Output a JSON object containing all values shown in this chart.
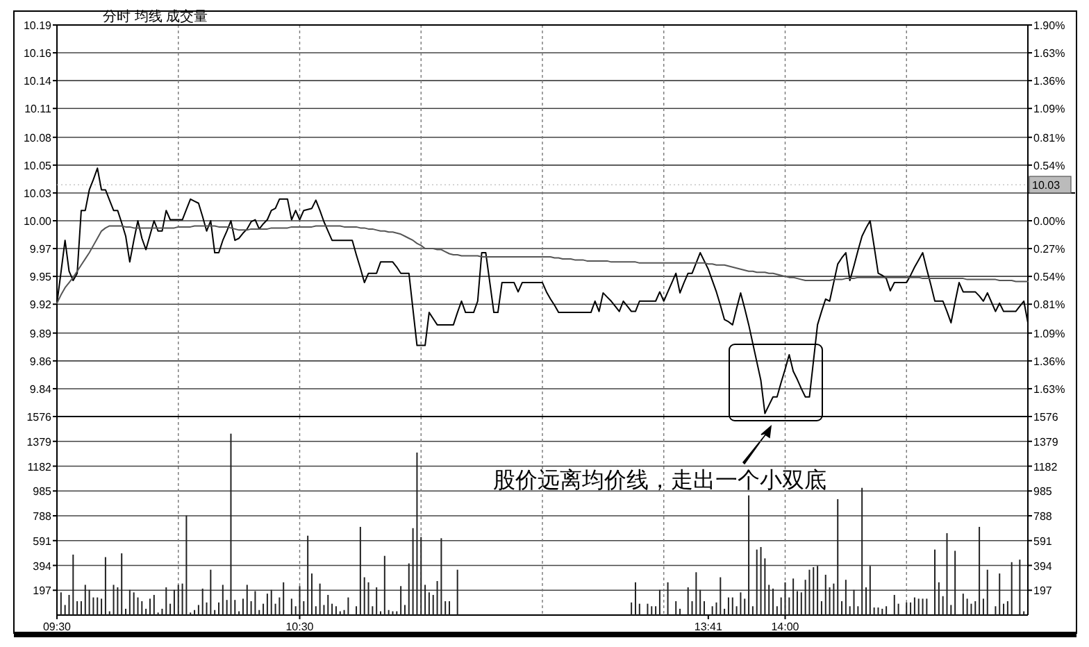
{
  "chart_data": [
    {
      "type": "line",
      "title": "分时 均线 成交量",
      "tick_labels": "y",
      "grid": true,
      "categories": [
        null,
        null,
        null,
        null,
        null,
        null,
        null,
        null,
        null,
        null,
        null,
        null,
        null,
        null,
        null,
        null,
        null,
        null,
        null,
        null,
        null,
        null,
        null,
        null,
        null,
        null,
        null,
        null,
        null,
        null,
        null,
        null,
        null,
        null,
        null,
        null,
        null,
        null,
        null,
        null,
        null,
        null,
        null,
        null,
        null,
        null,
        null,
        null,
        null,
        null,
        null,
        null,
        null,
        null,
        null,
        null,
        null,
        null,
        null,
        null,
        null,
        null,
        null,
        null,
        null,
        null,
        null,
        null,
        null,
        null,
        null,
        null,
        null,
        null,
        null,
        null,
        null,
        null,
        null,
        null,
        null,
        null,
        null,
        null,
        null,
        null,
        null,
        null,
        null,
        null,
        null,
        null,
        null,
        null,
        null,
        null,
        null,
        null,
        null,
        null,
        null,
        null,
        null,
        null,
        null,
        null,
        null,
        null,
        null,
        null,
        null,
        null,
        null,
        null,
        null,
        null,
        null,
        null,
        null,
        null,
        null,
        null,
        null,
        null,
        null,
        null,
        null,
        null,
        null,
        null,
        null,
        null,
        null,
        null,
        null,
        null,
        null,
        null,
        null,
        null,
        null,
        null,
        null,
        null,
        null,
        null,
        null,
        null,
        null,
        null,
        null,
        null,
        null,
        null,
        null,
        null,
        null,
        null,
        null,
        null,
        null,
        null,
        null,
        null,
        null,
        null,
        null,
        null,
        null,
        null,
        null,
        null,
        null,
        null,
        null,
        null,
        null,
        null,
        null,
        null,
        null,
        null,
        null,
        null,
        null,
        null,
        null,
        null,
        null,
        null,
        null,
        null,
        null,
        null,
        null,
        null,
        null,
        null,
        null,
        null,
        null,
        null,
        null,
        null,
        null,
        null,
        null,
        null,
        null,
        null,
        null,
        null,
        null,
        null,
        null,
        null,
        null,
        null,
        null,
        null,
        null,
        null,
        null,
        null,
        null,
        null,
        null,
        null,
        null,
        null,
        null,
        null,
        null,
        null,
        null,
        null,
        null,
        null,
        null,
        null,
        null
      ],
      "ylim": [
        9.81,
        10.19
      ],
      "yticks": [
        {
          "value": 10.19,
          "label": "10.19"
        },
        {
          "value": 10.163,
          "label": "10.16"
        },
        {
          "value": 10.136,
          "label": "10.14"
        },
        {
          "value": 10.109,
          "label": "10.11"
        },
        {
          "value": 10.081,
          "label": "10.08"
        },
        {
          "value": 10.054,
          "label": "10.05"
        },
        {
          "value": 10.027,
          "label": "10.03"
        },
        {
          "value": 10.0,
          "label": "10.00"
        },
        {
          "value": 9.973,
          "label": "9.97"
        },
        {
          "value": 9.946,
          "label": "9.95"
        },
        {
          "value": 9.919,
          "label": "9.92"
        },
        {
          "value": 9.891,
          "label": "9.89"
        },
        {
          "value": 9.864,
          "label": "9.86"
        },
        {
          "value": 9.837,
          "label": "9.84"
        }
      ],
      "y2lim": [
        -1.9,
        1.9
      ],
      "y2ticks": [
        {
          "value": 1.9,
          "label": "1.90%"
        },
        {
          "value": 1.63,
          "label": "1.63%"
        },
        {
          "value": 1.36,
          "label": "1.36%"
        },
        {
          "value": 1.09,
          "label": "1.09%"
        },
        {
          "value": 0.81,
          "label": "0.81%"
        },
        {
          "value": 0.54,
          "label": "0.54%"
        },
        {
          "value": 0,
          "label": "0.00%"
        },
        {
          "value": -0.27,
          "label": "0.27%"
        },
        {
          "value": -0.54,
          "label": "0.54%"
        },
        {
          "value": -0.81,
          "label": "0.81%"
        },
        {
          "value": -1.09,
          "label": "1.09%"
        },
        {
          "value": -1.36,
          "label": "1.36%"
        },
        {
          "value": -1.63,
          "label": "1.63%"
        }
      ],
      "ref_lines": [
        {
          "axis": "y",
          "value": 10.035,
          "label": "10.03",
          "color": "#bbbbbb"
        }
      ],
      "series": [
        {
          "color": "#000000",
          "values": [
            9.92,
            9.95,
            9.981,
            9.951,
            9.942,
            9.949,
            10.01,
            10.01,
            10.03,
            10.04,
            10.051,
            10.03,
            10.03,
            10.02,
            10.01,
            10.01,
            9.998,
            9.985,
            9.96,
            9.981,
            10.0,
            9.983,
            9.972,
            9.986,
            10.0,
            9.99,
            9.99,
            10.01,
            10.001,
            10.001,
            10.001,
            10.001,
            10.011,
            10.021,
            10.019,
            10.017,
            10.004,
            9.99,
            10.0,
            9.969,
            9.969,
            9.981,
            9.99,
            10.0,
            9.981,
            9.983,
            9.988,
            9.992,
            9.999,
            10.001,
            9.992,
            9.997,
            10.001,
            10.01,
            10.012,
            10.021,
            10.021,
            10.021,
            10.001,
            10.01,
            10.001,
            10.01,
            10.011,
            10.012,
            10.02,
            10.01,
            9.999,
            9.99,
            9.981,
            9.981,
            9.981,
            9.981,
            9.981,
            9.981,
            9.967,
            9.954,
            9.94,
            9.949,
            9.949,
            9.949,
            9.96,
            9.96,
            9.96,
            9.96,
            9.955,
            9.949,
            9.949,
            9.949,
            9.914,
            9.879,
            9.879,
            9.879,
            9.911,
            9.905,
            9.899,
            9.899,
            9.899,
            9.899,
            9.899,
            9.911,
            9.922,
            9.911,
            9.911,
            9.911,
            9.922,
            9.969,
            9.969,
            9.94,
            9.911,
            9.911,
            9.94,
            9.94,
            9.94,
            9.94,
            9.931,
            9.94,
            9.94,
            9.94,
            9.94,
            9.94,
            9.94,
            9.931,
            9.924,
            9.918,
            9.911,
            9.911,
            9.911,
            9.911,
            9.911,
            9.911,
            9.911,
            9.911,
            9.911,
            9.922,
            9.912,
            9.93,
            9.926,
            9.922,
            9.917,
            9.912,
            9.922,
            9.917,
            9.912,
            9.912,
            9.922,
            9.922,
            9.922,
            9.922,
            9.922,
            9.931,
            9.922,
            9.931,
            9.94,
            9.949,
            9.93,
            9.94,
            9.949,
            9.949,
            9.959,
            9.969,
            9.961,
            9.953,
            9.942,
            9.931,
            9.918,
            9.904,
            9.902,
            9.899,
            9.915,
            9.93,
            9.915,
            9.899,
            9.881,
            9.863,
            9.845,
            9.813,
            9.821,
            9.829,
            9.829,
            9.843,
            9.856,
            9.87,
            9.854,
            9.846,
            9.837,
            9.829,
            9.829,
            9.864,
            9.899,
            9.912,
            9.924,
            9.922,
            9.94,
            9.958,
            9.964,
            9.969,
            9.942,
            9.956,
            9.971,
            9.985,
            9.993,
            10.0,
            9.975,
            9.949,
            9.947,
            9.944,
            9.932,
            9.94,
            9.94,
            9.94,
            9.94,
            9.947,
            9.955,
            9.962,
            9.969,
            9.953,
            9.938,
            9.922,
            9.922,
            9.922,
            9.912,
            9.901,
            9.921,
            9.94,
            9.931,
            9.931,
            9.931,
            9.931,
            9.927,
            9.922,
            9.93,
            9.921,
            9.912,
            9.92,
            9.912,
            9.912,
            9.912,
            9.912,
            9.917,
            9.922,
            9.901
          ]
        },
        {
          "color": "#555555",
          "values": [
            9.92,
            9.928,
            9.935,
            9.94,
            9.945,
            9.951,
            9.957,
            9.963,
            9.969,
            9.976,
            9.983,
            9.99,
            9.993,
            9.995,
            9.995,
            9.995,
            9.995,
            9.994,
            9.994,
            9.993,
            9.993,
            9.993,
            9.993,
            9.993,
            9.993,
            9.993,
            9.993,
            9.993,
            9.993,
            9.993,
            9.994,
            9.994,
            9.994,
            9.994,
            9.995,
            9.995,
            9.995,
            9.995,
            9.995,
            9.995,
            9.994,
            9.994,
            9.994,
            9.993,
            9.992,
            9.991,
            9.991,
            9.991,
            9.992,
            9.992,
            9.992,
            9.992,
            9.992,
            9.993,
            9.993,
            9.993,
            9.993,
            9.993,
            9.994,
            9.994,
            9.994,
            9.994,
            9.994,
            9.994,
            9.995,
            9.995,
            9.995,
            9.995,
            9.995,
            9.995,
            9.995,
            9.994,
            9.994,
            9.994,
            9.994,
            9.993,
            9.993,
            9.992,
            9.992,
            9.991,
            9.99,
            9.99,
            9.989,
            9.989,
            9.988,
            9.987,
            9.985,
            9.983,
            9.981,
            9.978,
            9.976,
            9.973,
            9.973,
            9.973,
            9.972,
            9.972,
            9.97,
            9.968,
            9.967,
            9.967,
            9.966,
            9.966,
            9.966,
            9.966,
            9.966,
            9.965,
            9.965,
            9.965,
            9.965,
            9.965,
            9.965,
            9.965,
            9.965,
            9.965,
            9.965,
            9.965,
            9.965,
            9.965,
            9.965,
            9.965,
            9.965,
            9.965,
            9.965,
            9.964,
            9.964,
            9.963,
            9.963,
            9.963,
            9.962,
            9.962,
            9.962,
            9.961,
            9.961,
            9.961,
            9.961,
            9.961,
            9.961,
            9.96,
            9.96,
            9.96,
            9.96,
            9.96,
            9.96,
            9.96,
            9.959,
            9.959,
            9.959,
            9.959,
            9.959,
            9.959,
            9.959,
            9.959,
            9.959,
            9.959,
            9.959,
            9.959,
            9.959,
            9.959,
            9.959,
            9.959,
            9.959,
            9.958,
            9.958,
            9.957,
            9.957,
            9.957,
            9.956,
            9.955,
            9.954,
            9.953,
            9.952,
            9.951,
            9.951,
            9.95,
            9.95,
            9.95,
            9.949,
            9.949,
            9.948,
            9.947,
            9.946,
            9.945,
            9.945,
            9.944,
            9.943,
            9.942,
            9.942,
            9.942,
            9.942,
            9.942,
            9.942,
            9.942,
            9.943,
            9.943,
            9.943,
            9.944,
            9.944,
            9.944,
            9.945,
            9.945,
            9.945,
            9.945,
            9.945,
            9.945,
            9.945,
            9.945,
            9.945,
            9.945,
            9.945,
            9.945,
            9.945,
            9.945,
            9.945,
            9.945,
            9.944,
            9.944,
            9.944,
            9.944,
            9.944,
            9.944,
            9.944,
            9.944,
            9.944,
            9.944,
            9.944,
            9.943,
            9.943,
            9.943,
            9.943,
            9.943,
            9.943,
            9.943,
            9.943,
            9.942,
            9.942,
            9.942,
            9.942,
            9.941,
            9.941,
            9.941,
            9.941
          ]
        }
      ],
      "annotations": [
        "股价远离均价线，走出一个小双底"
      ]
    },
    {
      "type": "bar",
      "color": "#222222",
      "grid": true,
      "categories": [
        "09:30",
        null,
        null,
        null,
        null,
        null,
        null,
        null,
        null,
        null,
        null,
        null,
        null,
        null,
        null,
        null,
        null,
        null,
        null,
        null,
        null,
        null,
        null,
        null,
        null,
        null,
        null,
        null,
        null,
        null,
        null,
        null,
        null,
        null,
        null,
        null,
        null,
        null,
        null,
        null,
        null,
        null,
        null,
        null,
        null,
        null,
        null,
        null,
        null,
        null,
        null,
        null,
        null,
        null,
        null,
        null,
        null,
        null,
        null,
        null,
        "10:30",
        null,
        null,
        null,
        null,
        null,
        null,
        null,
        null,
        null,
        null,
        null,
        null,
        null,
        null,
        null,
        null,
        null,
        null,
        null,
        null,
        null,
        null,
        null,
        null,
        null,
        null,
        null,
        null,
        null,
        null,
        null,
        null,
        null,
        null,
        null,
        null,
        null,
        null,
        null,
        null,
        null,
        null,
        null,
        null,
        null,
        null,
        null,
        null,
        null,
        null,
        null,
        null,
        null,
        null,
        null,
        null,
        null,
        null,
        null,
        null,
        null,
        null,
        null,
        null,
        null,
        null,
        null,
        null,
        null,
        null,
        null,
        null,
        null,
        null,
        null,
        null,
        null,
        null,
        null,
        null,
        null,
        null,
        null,
        null,
        null,
        null,
        null,
        null,
        null,
        null,
        null,
        null,
        null,
        null,
        null,
        null,
        null,
        null,
        null,
        null,
        "13:41",
        null,
        null,
        null,
        null,
        null,
        null,
        null,
        null,
        null,
        null,
        null,
        null,
        null,
        null,
        null,
        null,
        null,
        null,
        "14:00",
        null,
        null,
        null,
        null,
        null,
        null,
        null,
        null,
        null,
        null,
        null,
        null,
        null,
        null,
        null,
        null,
        null,
        null,
        null,
        null,
        null,
        null,
        null,
        null,
        null,
        null,
        null,
        null,
        null,
        null,
        null,
        null,
        null,
        null,
        null,
        null,
        null,
        null,
        null,
        null,
        null,
        null,
        null,
        null,
        null,
        null,
        null,
        null,
        null,
        null,
        null,
        null,
        null,
        null,
        null,
        null,
        null,
        null,
        null,
        null
      ],
      "ylim": [
        0,
        1576
      ],
      "yticks": [
        197,
        394,
        591,
        788,
        985,
        1182,
        1379,
        1576
      ],
      "y2lim": [
        0,
        1576
      ],
      "y2ticks": [
        197,
        394,
        591,
        788,
        985,
        1182,
        1379,
        1576
      ],
      "values": [
        null,
        180,
        80,
        160,
        480,
        110,
        110,
        240,
        200,
        140,
        140,
        130,
        460,
        30,
        240,
        220,
        490,
        50,
        200,
        180,
        140,
        110,
        50,
        130,
        160,
        20,
        50,
        220,
        90,
        200,
        240,
        250,
        790,
        20,
        40,
        80,
        210,
        100,
        360,
        40,
        100,
        240,
        120,
        1440,
        120,
        30,
        130,
        240,
        110,
        190,
        40,
        90,
        170,
        200,
        90,
        140,
        260,
        null,
        130,
        70,
        230,
        110,
        630,
        330,
        70,
        250,
        80,
        160,
        90,
        70,
        30,
        40,
        140,
        null,
        70,
        700,
        300,
        260,
        70,
        220,
        30,
        470,
        40,
        30,
        30,
        230,
        80,
        410,
        690,
        1290,
        620,
        240,
        180,
        160,
        270,
        610,
        110,
        110,
        null,
        360,
        null,
        null,
        null,
        null,
        null,
        null,
        null,
        null,
        null,
        null,
        null,
        null,
        null,
        null,
        null,
        null,
        null,
        null,
        null,
        null,
        null,
        null,
        null,
        null,
        null,
        null,
        null,
        null,
        null,
        null,
        null,
        null,
        null,
        null,
        null,
        null,
        null,
        null,
        null,
        null,
        null,
        null,
        100,
        260,
        90,
        null,
        90,
        70,
        70,
        200,
        null,
        260,
        null,
        110,
        50,
        null,
        220,
        110,
        340,
        200,
        110,
        null,
        70,
        100,
        300,
        50,
        140,
        140,
        70,
        180,
        130,
        950,
        70,
        520,
        540,
        450,
        240,
        210,
        70,
        140,
        260,
        140,
        290,
        190,
        180,
        280,
        360,
        380,
        390,
        110,
        320,
        220,
        250,
        920,
        110,
        280,
        70,
        200,
        70,
        1010,
        220,
        390,
        60,
        60,
        50,
        70,
        null,
        160,
        90,
        null,
        100,
        100,
        140,
        130,
        130,
        130,
        null,
        520,
        260,
        150,
        650,
        80,
        510,
        null,
        170,
        130,
        90,
        110,
        700,
        130,
        360,
        null,
        70,
        330,
        90,
        110,
        420,
        null,
        440,
        30,
        null
      ]
    }
  ]
}
